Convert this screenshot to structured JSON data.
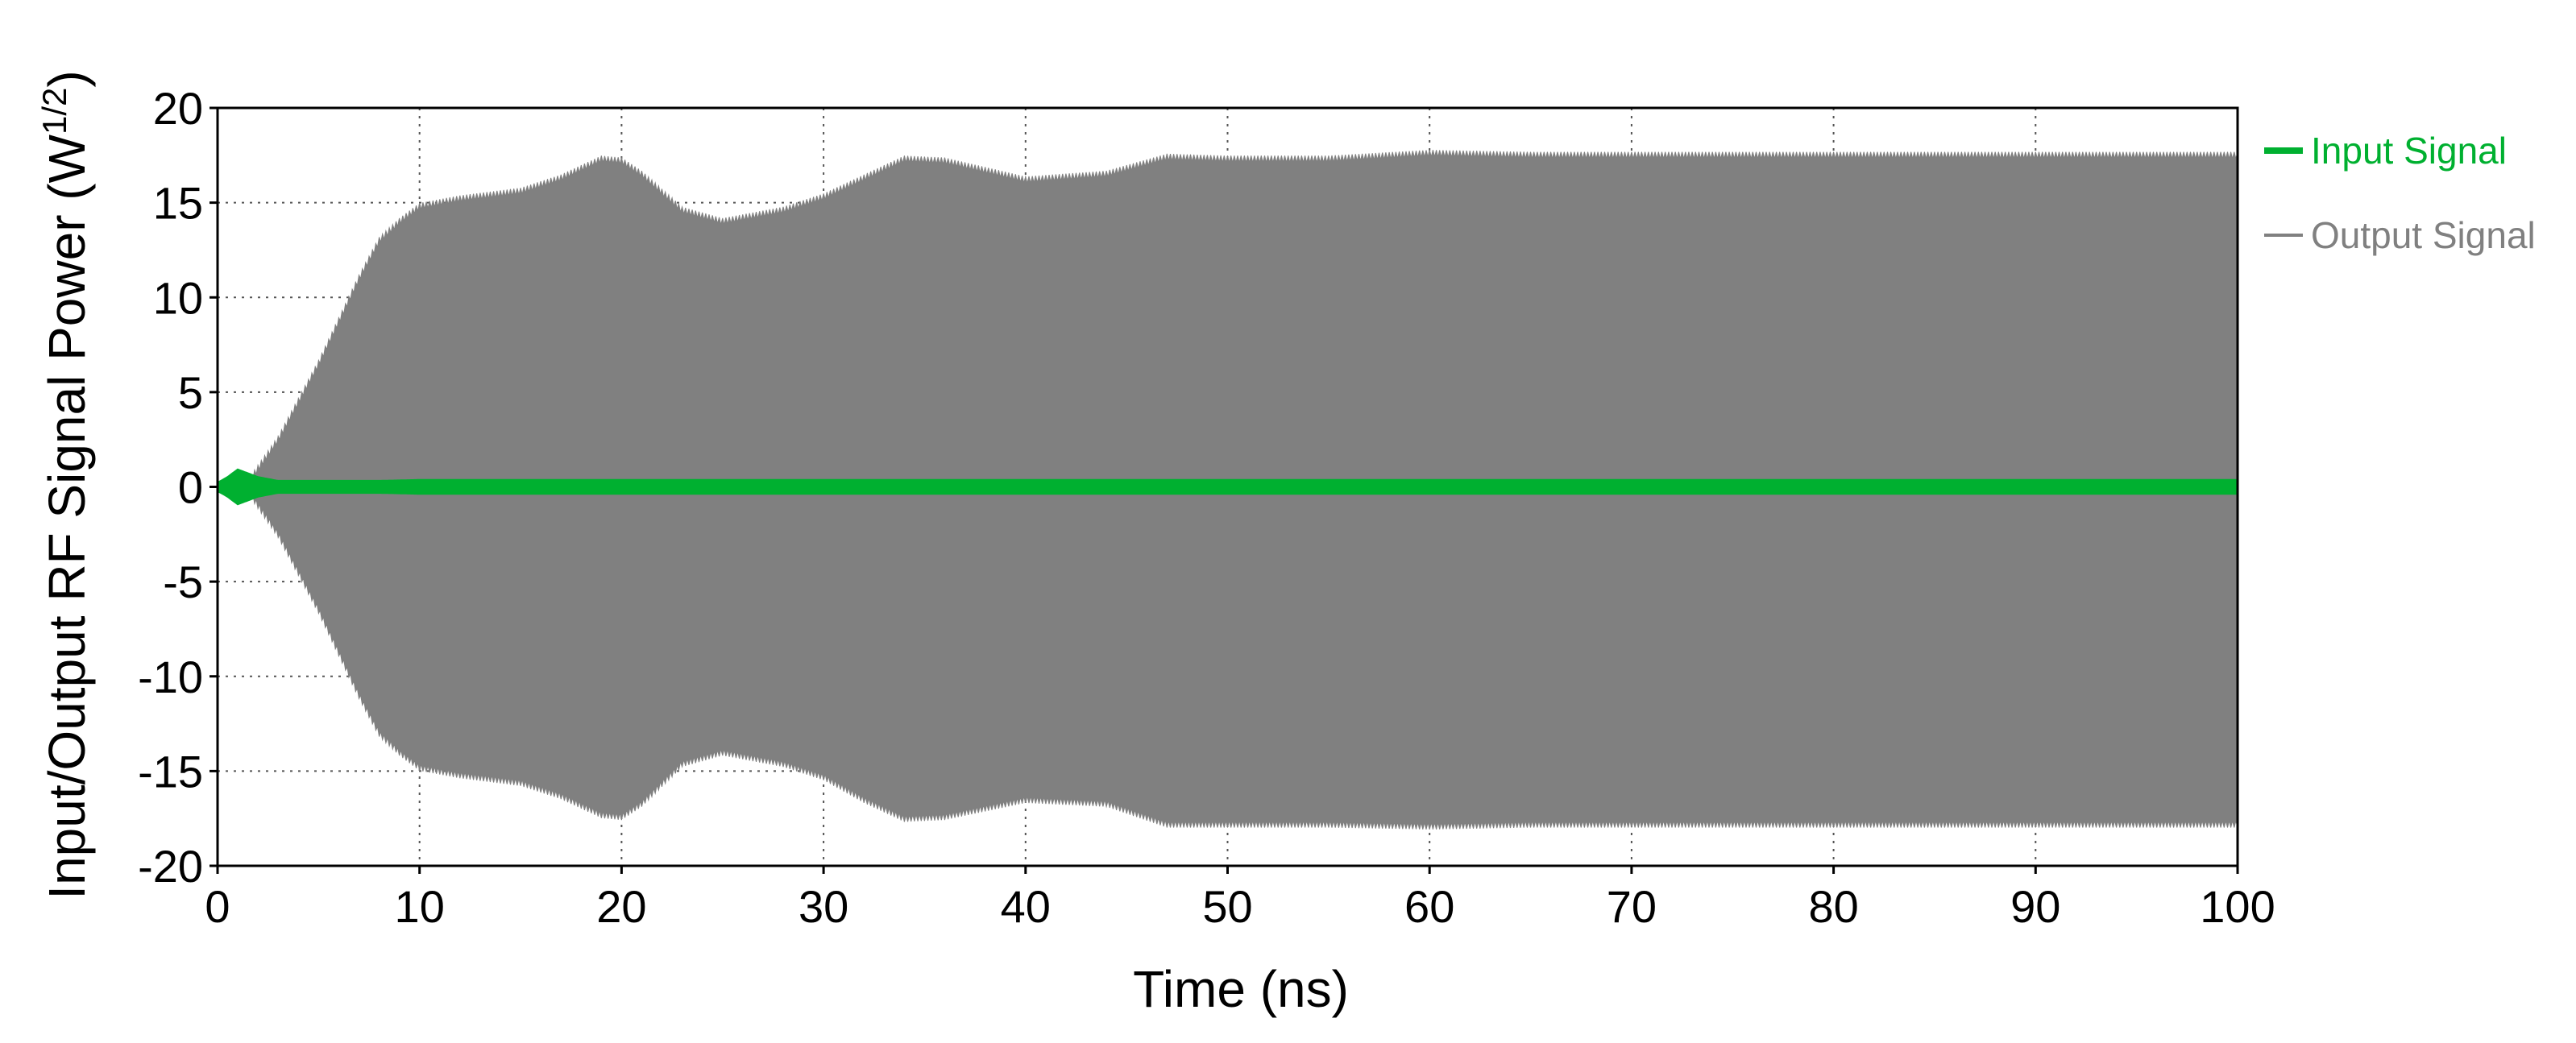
{
  "chart_data": {
    "type": "line",
    "xlabel": "Time (ns)",
    "ylabel": "Input/Output RF Signal Power (W",
    "ylabel_sup": "1/2",
    "ylabel_close": ")",
    "xlim": [
      0,
      100
    ],
    "ylim": [
      -20,
      20
    ],
    "x_ticks": [
      0,
      10,
      20,
      30,
      40,
      50,
      60,
      70,
      80,
      90,
      100
    ],
    "x_tick_labels": [
      "0",
      "10",
      "20",
      "30",
      "40",
      "50",
      "60",
      "70",
      "80",
      "90",
      "100"
    ],
    "y_ticks": [
      20,
      15,
      10,
      5,
      0,
      -5,
      -10,
      -15,
      -20
    ],
    "y_tick_labels": [
      "20",
      "15",
      "10",
      "5",
      "0",
      "-5",
      "-10",
      "-15",
      "-20"
    ],
    "grid": "dotted",
    "legend_position": "right",
    "series": [
      {
        "name": "Input Signal",
        "color": "#00b030",
        "style": "oscillating-band",
        "envelope_x": [
          0,
          0.5,
          1,
          1.5,
          2,
          3,
          4,
          6,
          8,
          10,
          20,
          40,
          60,
          80,
          100
        ],
        "envelope_upper": [
          0.2,
          0.5,
          0.9,
          0.7,
          0.5,
          0.3,
          0.3,
          0.3,
          0.3,
          0.35,
          0.35,
          0.35,
          0.35,
          0.35,
          0.35
        ],
        "envelope_lower": [
          -0.2,
          -0.5,
          -0.9,
          -0.7,
          -0.5,
          -0.3,
          -0.3,
          -0.3,
          -0.3,
          -0.35,
          -0.35,
          -0.35,
          -0.35,
          -0.35,
          -0.35
        ]
      },
      {
        "name": "Output Signal",
        "color": "#808080",
        "style": "oscillating-band",
        "envelope_x": [
          0,
          1.5,
          3,
          5,
          7,
          8,
          9,
          10,
          12,
          15,
          17,
          19,
          20,
          21,
          23,
          25,
          28,
          30,
          32,
          34,
          36,
          40,
          44,
          47,
          50,
          55,
          60,
          65,
          70,
          80,
          90,
          100
        ],
        "envelope_upper": [
          0,
          0.2,
          2.5,
          6.5,
          11,
          13,
          14,
          14.8,
          15.2,
          15.6,
          16.3,
          17.3,
          17.2,
          16.5,
          14.6,
          14,
          14.6,
          15.3,
          16.3,
          17.3,
          17.2,
          16.2,
          16.5,
          17.4,
          17.3,
          17.3,
          17.6,
          17.5,
          17.5,
          17.5,
          17.5,
          17.5
        ],
        "envelope_lower": [
          0,
          -0.2,
          -2.5,
          -6.5,
          -11,
          -13,
          -14,
          -14.8,
          -15.2,
          -15.6,
          -16.3,
          -17.3,
          -17.4,
          -16.7,
          -14.6,
          -14,
          -14.6,
          -15.3,
          -16.5,
          -17.5,
          -17.4,
          -16.5,
          -16.7,
          -17.8,
          -17.8,
          -17.8,
          -17.9,
          -17.8,
          -17.8,
          -17.8,
          -17.8,
          -17.8
        ]
      }
    ]
  }
}
